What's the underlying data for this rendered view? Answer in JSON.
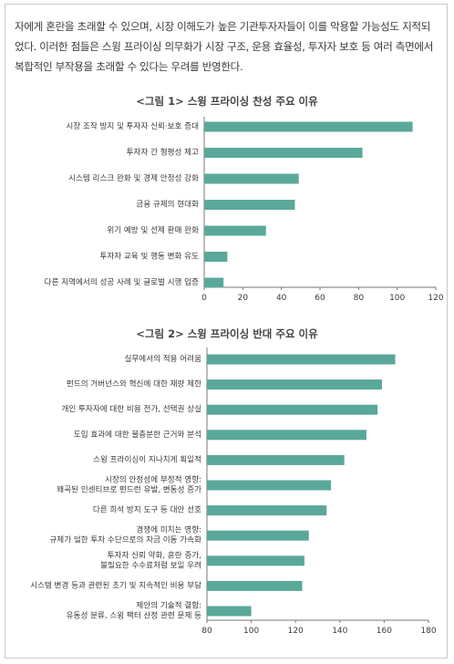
{
  "intro": {
    "lines": [
      "자에게 혼란을 초래할 수 있으며, 시장 이해도가 높은 기관투자자들이 이를 악용할 가능성도 지적되",
      "었다. 이러한 점들은 스윙 프라이싱 의무화가 시장 구조, 운용 효율성, 투자자 보호 등 여러 측면에서",
      "복합적인 부작용을 초래할 수 있다는 우려를 반영한다."
    ]
  },
  "colors": {
    "bar": "#5aa89a",
    "axis": "#777777",
    "frame": "#c9c9c9"
  },
  "chart_data": [
    {
      "type": "bar",
      "orientation": "horizontal",
      "title": "<그림 1> 스윙 프라이싱 찬성 주요 이유",
      "categories": [
        "시장 조작 방지 및 투자자 신뢰·보호 증대",
        "투자자 간 형평성 제고",
        "시스템 리스크 완화 및 경제 안정성 강화",
        "금융 규제의 현대화",
        "위기 예방 및 선제 환매 완화",
        "투자자 교육 및 행동 변화 유도",
        "다른 지역에서의 성공 사례 및 글로벌 시행 입증"
      ],
      "values": [
        108,
        82,
        49,
        47,
        32,
        12,
        10
      ],
      "xlim": [
        0,
        120
      ],
      "xticks": [
        "0",
        "20",
        "40",
        "60",
        "80",
        "100",
        "120"
      ]
    },
    {
      "type": "bar",
      "orientation": "horizontal",
      "title": "<그림 2> 스윙 프라이싱 반대 주요 이유",
      "categories": [
        [
          "실무에서의 적용 어려움"
        ],
        [
          "펀드의 거버넌스와 혁신에 대한 재량 제한"
        ],
        [
          "개인 투자자에 대한 비용 전가, 선택권 상실"
        ],
        [
          "도입 효과에 대한 불충분한 근거와 분석"
        ],
        [
          "스윙 프라이싱이 지나치게 획일적"
        ],
        [
          "시장의 안정성에 부정적 영향:",
          "왜곡된 인센티브로 펀드런 유발, 변동성 증가"
        ],
        [
          "다른 희석 방지 도구 등 대안 선호"
        ],
        [
          "경쟁에 미치는 영향:",
          "규제가 덜한 투자 수단으로의 자금 이동 가속화"
        ],
        [
          "투자자 신뢰 약화, 혼란 증가,",
          "불필요한 수수료처럼 보일 우려"
        ],
        [
          "시스템 변경 등과 관련된 초기 및 지속적인 비용 부담"
        ],
        [
          "제안의 기술적 결함:",
          "유동성 분류, 스윙 팩터 산정 관련 문제 등"
        ]
      ],
      "values": [
        165,
        159,
        157,
        152,
        142,
        136,
        134,
        126,
        124,
        123,
        100
      ],
      "xlim": [
        80,
        180
      ],
      "xticks": [
        "80",
        "100",
        "120",
        "140",
        "160",
        "180"
      ]
    }
  ]
}
